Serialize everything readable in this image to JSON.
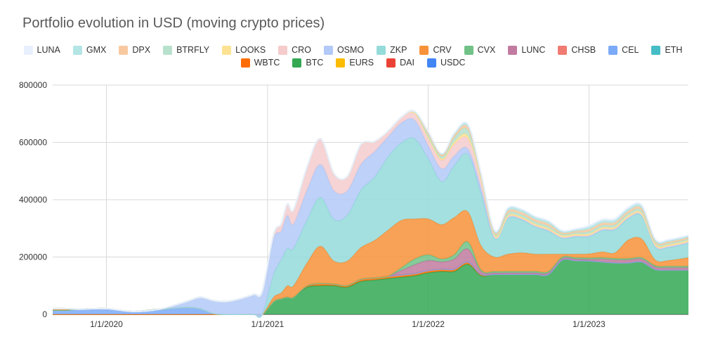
{
  "chart_data": {
    "type": "area",
    "stacked": true,
    "title": "Portfolio evolution in USD (moving crypto prices)",
    "xlabel": "",
    "ylabel": "",
    "ylim": [
      0,
      800000
    ],
    "y_ticks": [
      0,
      200000,
      400000,
      600000,
      800000
    ],
    "y_tick_labels": [
      "0",
      "200000",
      "400000",
      "600000",
      "800000"
    ],
    "x_ticks": [
      "2020-01-01",
      "2021-01-01",
      "2022-01-01",
      "2023-01-01"
    ],
    "x_tick_labels": [
      "1/1/2020",
      "1/1/2021",
      "1/1/2022",
      "1/1/2023"
    ],
    "xlim": [
      "2019-09-01",
      "2023-08-15"
    ],
    "grid": true,
    "legend_position": "top",
    "x": [
      "2019-09-01",
      "2019-10-01",
      "2019-11-01",
      "2020-01-01",
      "2020-03-01",
      "2020-05-01",
      "2020-07-01",
      "2020-08-01",
      "2020-09-01",
      "2020-10-01",
      "2020-11-01",
      "2020-12-01",
      "2020-12-20",
      "2021-01-15",
      "2021-02-01",
      "2021-02-15",
      "2021-03-01",
      "2021-04-01",
      "2021-05-01",
      "2021-06-01",
      "2021-07-01",
      "2021-08-01",
      "2021-09-01",
      "2021-10-01",
      "2021-11-01",
      "2021-12-01",
      "2022-01-01",
      "2022-02-01",
      "2022-03-01",
      "2022-04-01",
      "2022-05-01",
      "2022-06-01",
      "2022-07-01",
      "2022-08-01",
      "2022-09-01",
      "2022-10-01",
      "2022-11-01",
      "2022-12-01",
      "2023-01-01",
      "2023-02-01",
      "2023-03-01",
      "2023-04-01",
      "2023-05-01",
      "2023-06-01",
      "2023-07-01",
      "2023-08-15"
    ],
    "series": [
      {
        "name": "USDC",
        "color": "#4285f4",
        "values": [
          0,
          0,
          0,
          0,
          0,
          0,
          0,
          0,
          0,
          0,
          0,
          0,
          0,
          0,
          0,
          0,
          0,
          0,
          0,
          0,
          0,
          0,
          0,
          0,
          0,
          0,
          0,
          0,
          0,
          0,
          0,
          0,
          0,
          0,
          0,
          0,
          0,
          0,
          0,
          0,
          0,
          0,
          0,
          0,
          0,
          0
        ]
      },
      {
        "name": "DAI",
        "color": "#ea4335",
        "values": [
          0,
          0,
          0,
          0,
          0,
          0,
          0,
          0,
          0,
          0,
          0,
          0,
          0,
          0,
          0,
          0,
          0,
          0,
          0,
          0,
          0,
          0,
          0,
          0,
          0,
          0,
          0,
          0,
          0,
          0,
          0,
          0,
          0,
          0,
          0,
          0,
          0,
          0,
          0,
          0,
          0,
          0,
          0,
          0,
          0,
          0
        ]
      },
      {
        "name": "EURS",
        "color": "#fbbc04",
        "values": [
          0,
          0,
          0,
          0,
          0,
          0,
          0,
          0,
          0,
          0,
          0,
          0,
          0,
          0,
          0,
          0,
          0,
          0,
          0,
          0,
          0,
          0,
          0,
          0,
          0,
          0,
          0,
          0,
          0,
          0,
          0,
          0,
          0,
          0,
          0,
          0,
          0,
          0,
          0,
          0,
          0,
          0,
          0,
          0,
          0,
          0
        ]
      },
      {
        "name": "BTC",
        "color": "#34a853",
        "values": [
          0,
          0,
          0,
          0,
          0,
          0,
          0,
          0,
          0,
          0,
          0,
          0,
          0,
          45000,
          55000,
          60000,
          60000,
          95000,
          100000,
          100000,
          95000,
          115000,
          120000,
          125000,
          130000,
          135000,
          145000,
          150000,
          150000,
          175000,
          135000,
          140000,
          140000,
          140000,
          140000,
          140000,
          190000,
          188000,
          187000,
          183000,
          180000,
          180000,
          183000,
          157000,
          155000,
          155000
        ]
      },
      {
        "name": "WBTC",
        "color": "#ff6d01",
        "values": [
          0,
          0,
          0,
          0,
          0,
          0,
          0,
          0,
          0,
          0,
          0,
          0,
          0,
          0,
          0,
          0,
          0,
          5000,
          8000,
          6000,
          6000,
          8000,
          8000,
          8000,
          8000,
          8000,
          8000,
          8000,
          8000,
          8000,
          5000,
          0,
          0,
          0,
          0,
          0,
          0,
          0,
          0,
          0,
          0,
          0,
          0,
          0,
          0,
          0
        ]
      },
      {
        "name": "ETH",
        "color": "#46bdc6",
        "values": [
          0,
          0,
          0,
          0,
          0,
          0,
          0,
          0,
          0,
          0,
          0,
          0,
          0,
          0,
          0,
          0,
          0,
          0,
          0,
          0,
          0,
          0,
          0,
          0,
          0,
          0,
          0,
          0,
          0,
          0,
          0,
          0,
          0,
          0,
          0,
          0,
          0,
          0,
          0,
          0,
          0,
          0,
          0,
          0,
          0,
          0
        ]
      },
      {
        "name": "CEL",
        "color": "#7baaf7",
        "values": [
          15000,
          15000,
          18000,
          20000,
          10000,
          18000,
          25000,
          20000,
          3000,
          0,
          0,
          0,
          0,
          0,
          0,
          0,
          0,
          0,
          0,
          0,
          0,
          0,
          0,
          0,
          0,
          0,
          0,
          0,
          0,
          0,
          0,
          0,
          0,
          0,
          0,
          0,
          0,
          0,
          0,
          0,
          0,
          0,
          0,
          0,
          0,
          0
        ]
      },
      {
        "name": "CHSB",
        "color": "#f07b72",
        "values": [
          0,
          0,
          0,
          0,
          0,
          0,
          0,
          0,
          0,
          0,
          0,
          0,
          0,
          0,
          0,
          0,
          0,
          0,
          0,
          0,
          0,
          0,
          0,
          0,
          0,
          0,
          0,
          0,
          0,
          0,
          0,
          0,
          0,
          0,
          0,
          0,
          0,
          0,
          0,
          0,
          0,
          0,
          0,
          0,
          0,
          0
        ]
      },
      {
        "name": "LUNC",
        "color": "#c27ba0",
        "values": [
          0,
          0,
          0,
          0,
          0,
          0,
          0,
          0,
          0,
          0,
          0,
          0,
          0,
          0,
          0,
          0,
          0,
          0,
          0,
          0,
          0,
          0,
          0,
          0,
          15000,
          30000,
          35000,
          25000,
          35000,
          45000,
          10000,
          5000,
          5000,
          5000,
          5000,
          5000,
          5000,
          5000,
          5000,
          10000,
          10000,
          10000,
          10000,
          8000,
          8000,
          8000
        ]
      },
      {
        "name": "CVX",
        "color": "#71c287",
        "values": [
          0,
          0,
          0,
          0,
          0,
          0,
          0,
          0,
          0,
          0,
          0,
          0,
          0,
          0,
          0,
          0,
          0,
          0,
          0,
          0,
          0,
          0,
          0,
          0,
          10000,
          20000,
          20000,
          10000,
          15000,
          25000,
          5000,
          5000,
          5000,
          5000,
          5000,
          5000,
          5000,
          5000,
          5000,
          5000,
          5000,
          5000,
          5000,
          5000,
          5000,
          5000
        ]
      },
      {
        "name": "CRV",
        "color": "#f7923a",
        "values": [
          5000,
          5000,
          0,
          0,
          0,
          0,
          0,
          0,
          0,
          0,
          0,
          0,
          0,
          15000,
          20000,
          40000,
          40000,
          80000,
          130000,
          80000,
          85000,
          110000,
          130000,
          160000,
          165000,
          140000,
          125000,
          120000,
          130000,
          105000,
          85000,
          50000,
          60000,
          65000,
          60000,
          60000,
          10000,
          12000,
          14000,
          20000,
          20000,
          65000,
          65000,
          20000,
          20000,
          30000
        ]
      },
      {
        "name": "ZKP",
        "color": "#95dbda",
        "values": [
          0,
          0,
          0,
          0,
          0,
          0,
          0,
          0,
          0,
          0,
          0,
          0,
          0,
          80000,
          115000,
          130000,
          130000,
          150000,
          170000,
          145000,
          160000,
          200000,
          220000,
          255000,
          270000,
          280000,
          210000,
          150000,
          180000,
          200000,
          180000,
          65000,
          125000,
          115000,
          95000,
          80000,
          55000,
          60000,
          60000,
          75000,
          80000,
          75000,
          80000,
          45000,
          45000,
          50000
        ]
      },
      {
        "name": "OSMO",
        "color": "#b3c9f7",
        "values": [
          0,
          0,
          0,
          0,
          0,
          0,
          20000,
          40000,
          45000,
          45000,
          55000,
          70000,
          80000,
          125000,
          100000,
          115000,
          85000,
          105000,
          115000,
          100000,
          85000,
          90000,
          90000,
          70000,
          70000,
          65000,
          45000,
          45000,
          35000,
          20000,
          20000,
          5000,
          5000,
          5000,
          5000,
          5000,
          5000,
          5000,
          5000,
          5000,
          5000,
          5000,
          5000,
          5000,
          5000,
          5000
        ]
      },
      {
        "name": "CRO",
        "color": "#f5cbcc",
        "values": [
          0,
          0,
          0,
          0,
          0,
          0,
          0,
          0,
          0,
          0,
          0,
          0,
          0,
          15000,
          25000,
          40000,
          50000,
          80000,
          90000,
          60000,
          50000,
          70000,
          35000,
          20000,
          20000,
          25000,
          25000,
          30000,
          40000,
          35000,
          30000,
          0,
          0,
          0,
          0,
          0,
          0,
          0,
          0,
          0,
          0,
          0,
          0,
          0,
          0,
          0
        ]
      },
      {
        "name": "LOOKS",
        "color": "#fde293",
        "values": [
          0,
          0,
          0,
          0,
          0,
          0,
          0,
          0,
          0,
          0,
          0,
          0,
          0,
          0,
          0,
          0,
          0,
          0,
          0,
          0,
          0,
          0,
          0,
          0,
          0,
          0,
          5000,
          5000,
          8000,
          10000,
          5000,
          5000,
          5000,
          5000,
          5000,
          5000,
          5000,
          5000,
          5000,
          5000,
          5000,
          5000,
          5000,
          5000,
          5000,
          5000
        ]
      },
      {
        "name": "BTRFLY",
        "color": "#b7e1cd",
        "values": [
          0,
          0,
          0,
          0,
          0,
          0,
          0,
          0,
          0,
          0,
          0,
          0,
          0,
          0,
          0,
          0,
          0,
          0,
          0,
          0,
          0,
          0,
          0,
          0,
          0,
          5000,
          10000,
          8000,
          15000,
          20000,
          8000,
          5000,
          8000,
          8000,
          8000,
          8000,
          5000,
          5000,
          8000,
          8000,
          8000,
          8000,
          8000,
          5000,
          5000,
          5000
        ]
      },
      {
        "name": "DPX",
        "color": "#f8c9a1",
        "values": [
          0,
          0,
          0,
          0,
          0,
          0,
          0,
          0,
          0,
          0,
          0,
          0,
          0,
          0,
          0,
          0,
          0,
          0,
          0,
          0,
          0,
          0,
          0,
          0,
          0,
          0,
          5000,
          5000,
          8000,
          10000,
          5000,
          5000,
          8000,
          8000,
          8000,
          8000,
          5000,
          5000,
          8000,
          8000,
          8000,
          8000,
          8000,
          5000,
          5000,
          5000
        ]
      },
      {
        "name": "GMX",
        "color": "#b4e5e5",
        "values": [
          0,
          0,
          0,
          0,
          0,
          0,
          0,
          0,
          0,
          0,
          0,
          0,
          0,
          0,
          0,
          0,
          0,
          0,
          0,
          0,
          0,
          0,
          0,
          0,
          0,
          0,
          5000,
          5000,
          8000,
          10000,
          5000,
          5000,
          8000,
          8000,
          8000,
          8000,
          5000,
          5000,
          8000,
          8000,
          8000,
          8000,
          8000,
          5000,
          5000,
          5000
        ]
      },
      {
        "name": "LUNA",
        "color": "#e8f0fe",
        "values": [
          0,
          0,
          0,
          0,
          0,
          0,
          0,
          0,
          0,
          0,
          0,
          0,
          0,
          0,
          0,
          0,
          0,
          0,
          0,
          0,
          0,
          0,
          0,
          0,
          0,
          0,
          0,
          0,
          0,
          0,
          0,
          3000,
          3000,
          3000,
          3000,
          3000,
          3000,
          3000,
          5000,
          5000,
          5000,
          5000,
          5000,
          3000,
          3000,
          3000
        ]
      }
    ],
    "legend": [
      [
        "LUNA",
        "GMX",
        "DPX",
        "BTRFLY",
        "LOOKS",
        "CRO",
        "OSMO",
        "ZKP",
        "CRV",
        "CVX",
        "LUNC",
        "CHSB",
        "CEL",
        "ETH"
      ],
      [
        "WBTC",
        "BTC",
        "EURS",
        "DAI",
        "USDC"
      ]
    ]
  }
}
